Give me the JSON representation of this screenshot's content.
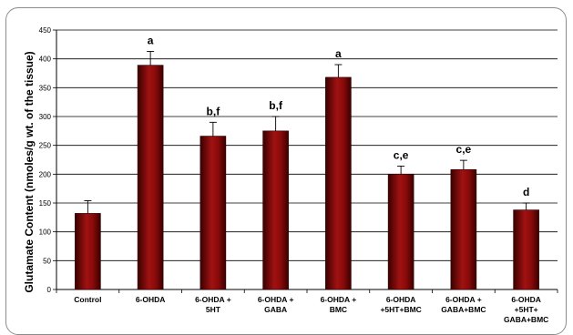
{
  "chart_data": {
    "type": "bar",
    "title": "",
    "xlabel": "",
    "ylabel": "Glutamate Content (nmoles/g wt. of the tissue)",
    "ylim": [
      0,
      450
    ],
    "yticks": [
      0,
      50,
      100,
      150,
      200,
      250,
      300,
      350,
      400,
      450
    ],
    "grid": true,
    "legend": "none",
    "categories": [
      [
        "Control"
      ],
      [
        "6-OHDA"
      ],
      [
        "6-OHDA +",
        "5HT"
      ],
      [
        "6-OHDA +",
        "GABA"
      ],
      [
        "6-OHDA +",
        "BMC"
      ],
      [
        "6-OHDA",
        "+5HT+BMC"
      ],
      [
        "6-OHDA +",
        "GABA+BMC"
      ],
      [
        "6-OHDA",
        "+5HT+",
        "GABA+BMC"
      ]
    ],
    "values": [
      132,
      389,
      266,
      275,
      368,
      200,
      208,
      138
    ],
    "errors": [
      22,
      24,
      24,
      25,
      22,
      14,
      16,
      12
    ],
    "labels": [
      "",
      "a",
      "b,f",
      "b,f",
      "a",
      "c,e",
      "c,e",
      "d"
    ],
    "colors": {
      "bar_dark": "#4a0000",
      "bar_mid": "#8b0a0a",
      "bar_light": "#b01a1a",
      "grid": "#000000"
    }
  }
}
